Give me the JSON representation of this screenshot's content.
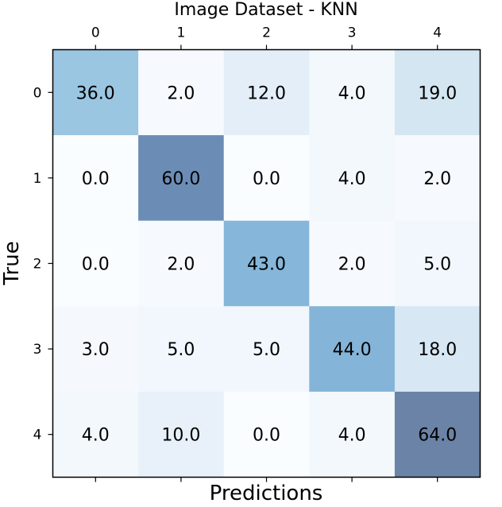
{
  "chart_data": {
    "type": "heatmap",
    "title": "Image Dataset - KNN",
    "xlabel": "Predictions",
    "ylabel": "True",
    "x_tick_labels": [
      "0",
      "1",
      "2",
      "3",
      "4"
    ],
    "y_tick_labels": [
      "0",
      "1",
      "2",
      "3",
      "4"
    ],
    "x_axis_position": "top",
    "matrix": [
      [
        36.0,
        2.0,
        12.0,
        4.0,
        19.0
      ],
      [
        0.0,
        60.0,
        0.0,
        4.0,
        2.0
      ],
      [
        0.0,
        2.0,
        43.0,
        2.0,
        5.0
      ],
      [
        3.0,
        5.0,
        5.0,
        44.0,
        18.0
      ],
      [
        4.0,
        10.0,
        0.0,
        4.0,
        64.0
      ]
    ],
    "cell_labels": [
      [
        "36.0",
        "2.0",
        "12.0",
        "4.0",
        "19.0"
      ],
      [
        "0.0",
        "60.0",
        "0.0",
        "4.0",
        "2.0"
      ],
      [
        "0.0",
        "2.0",
        "43.0",
        "2.0",
        "5.0"
      ],
      [
        "3.0",
        "5.0",
        "5.0",
        "44.0",
        "18.0"
      ],
      [
        "4.0",
        "10.0",
        "0.0",
        "4.0",
        "64.0"
      ]
    ],
    "colormap": "Blues",
    "value_range": [
      0,
      64
    ],
    "cell_alpha": 0.6,
    "grid": false
  }
}
